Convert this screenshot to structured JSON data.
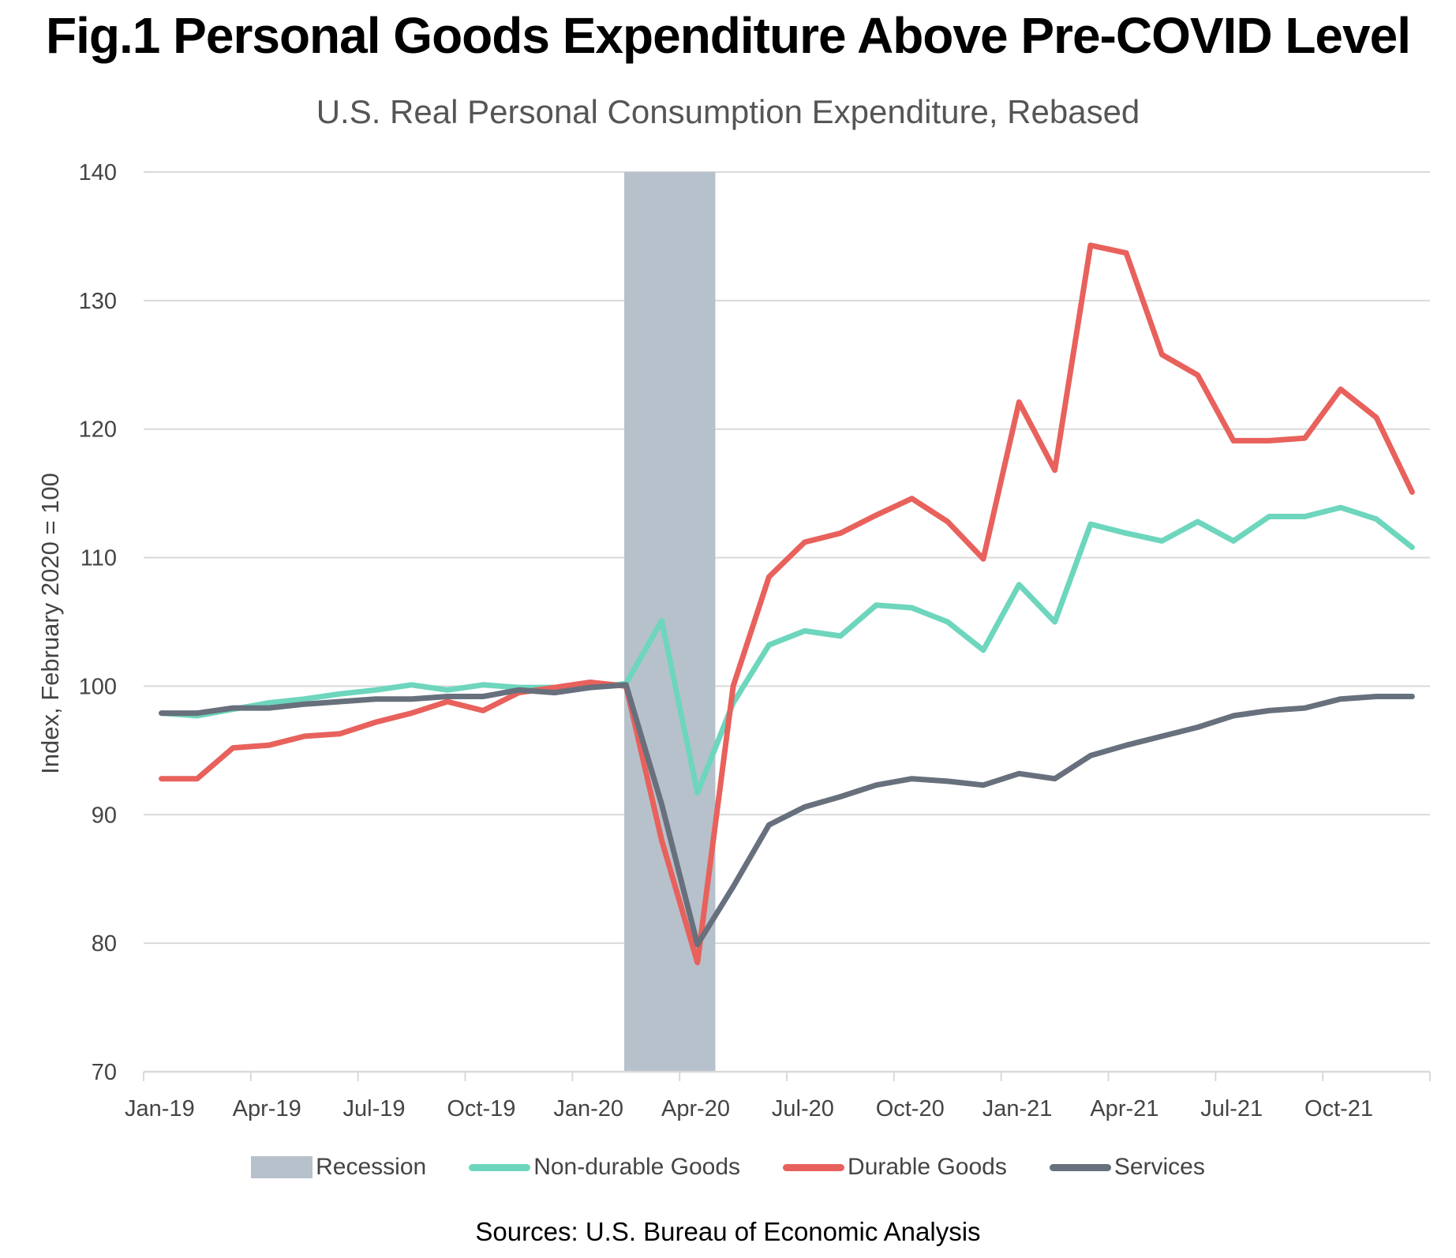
{
  "title": "Fig.1 Personal Goods Expenditure Above Pre-COVID Level",
  "subtitle": "U.S. Real Personal Consumption Expenditure, Rebased",
  "source": "Sources: U.S. Bureau of Economic Analysis",
  "colors": {
    "recession": "#b7c1cb",
    "non_durable": "#6dd6bd",
    "durable": "#e8615c",
    "services": "#67707c",
    "grid": "#d9d9d9",
    "tick_text": "#444444"
  },
  "chart_data": {
    "type": "line",
    "title": "Fig.1 Personal Goods Expenditure Above Pre-COVID Level",
    "subtitle": "U.S. Real Personal Consumption Expenditure, Rebased",
    "xlabel": "",
    "ylabel": "Index, February 2020 = 100",
    "ylim": [
      70,
      140
    ],
    "yticks": [
      70,
      80,
      90,
      100,
      110,
      120,
      130,
      140
    ],
    "grid": true,
    "legend_position": "bottom",
    "x": [
      "Jan-19",
      "Feb-19",
      "Mar-19",
      "Apr-19",
      "May-19",
      "Jun-19",
      "Jul-19",
      "Aug-19",
      "Sep-19",
      "Oct-19",
      "Nov-19",
      "Dec-19",
      "Jan-20",
      "Feb-20",
      "Mar-20",
      "Apr-20",
      "May-20",
      "Jun-20",
      "Jul-20",
      "Aug-20",
      "Sep-20",
      "Oct-20",
      "Nov-20",
      "Dec-20",
      "Jan-21",
      "Feb-21",
      "Mar-21",
      "Apr-21",
      "May-21",
      "Jun-21",
      "Jul-21",
      "Aug-21",
      "Sep-21",
      "Oct-21",
      "Nov-21",
      "Dec-21"
    ],
    "xtick_labels": [
      "Jan-19",
      "Apr-19",
      "Jul-19",
      "Oct-19",
      "Jan-20",
      "Apr-20",
      "Jul-20",
      "Oct-20",
      "Jan-21",
      "Apr-21",
      "Jul-21",
      "Oct-21"
    ],
    "recession": {
      "name": "Recession",
      "start": "Feb-20",
      "end": "Apr-20"
    },
    "series": [
      {
        "name": "Non-durable Goods",
        "key": "non_durable",
        "values": [
          97.9,
          97.7,
          98.2,
          98.7,
          99.0,
          99.4,
          99.7,
          100.1,
          99.7,
          100.1,
          99.9,
          99.9,
          99.9,
          100.2,
          105.1,
          91.7,
          98.7,
          103.2,
          104.3,
          103.9,
          106.3,
          106.1,
          105.0,
          102.8,
          107.9,
          105.0,
          112.6,
          111.9,
          111.3,
          112.8,
          111.3,
          113.2,
          113.2,
          113.9,
          113.0,
          110.8
        ]
      },
      {
        "name": "Durable Goods",
        "key": "durable",
        "values": [
          92.8,
          92.8,
          95.2,
          95.4,
          96.1,
          96.3,
          97.2,
          97.9,
          98.8,
          98.1,
          99.5,
          99.9,
          100.3,
          100.0,
          88.0,
          78.5,
          100.0,
          108.5,
          111.2,
          111.9,
          113.3,
          114.6,
          112.8,
          109.9,
          122.1,
          116.8,
          134.3,
          133.7,
          125.8,
          124.2,
          119.1,
          119.1,
          119.3,
          123.1,
          120.9,
          115.1
        ]
      },
      {
        "name": "Services",
        "key": "services",
        "values": [
          97.9,
          97.9,
          98.3,
          98.3,
          98.6,
          98.8,
          99.0,
          99.0,
          99.2,
          99.2,
          99.7,
          99.5,
          99.9,
          100.1,
          90.8,
          79.9,
          84.4,
          89.2,
          90.6,
          91.4,
          92.3,
          92.8,
          92.6,
          92.3,
          93.2,
          92.8,
          94.6,
          95.4,
          96.1,
          96.8,
          97.7,
          98.1,
          98.3,
          99.0,
          99.2,
          99.2
        ]
      }
    ]
  },
  "legend": [
    {
      "label": "Recession",
      "kind": "box",
      "key": "recession"
    },
    {
      "label": "Non-durable Goods",
      "kind": "line",
      "key": "non_durable"
    },
    {
      "label": "Durable Goods",
      "kind": "line",
      "key": "durable"
    },
    {
      "label": "Services",
      "kind": "line",
      "key": "services"
    }
  ]
}
